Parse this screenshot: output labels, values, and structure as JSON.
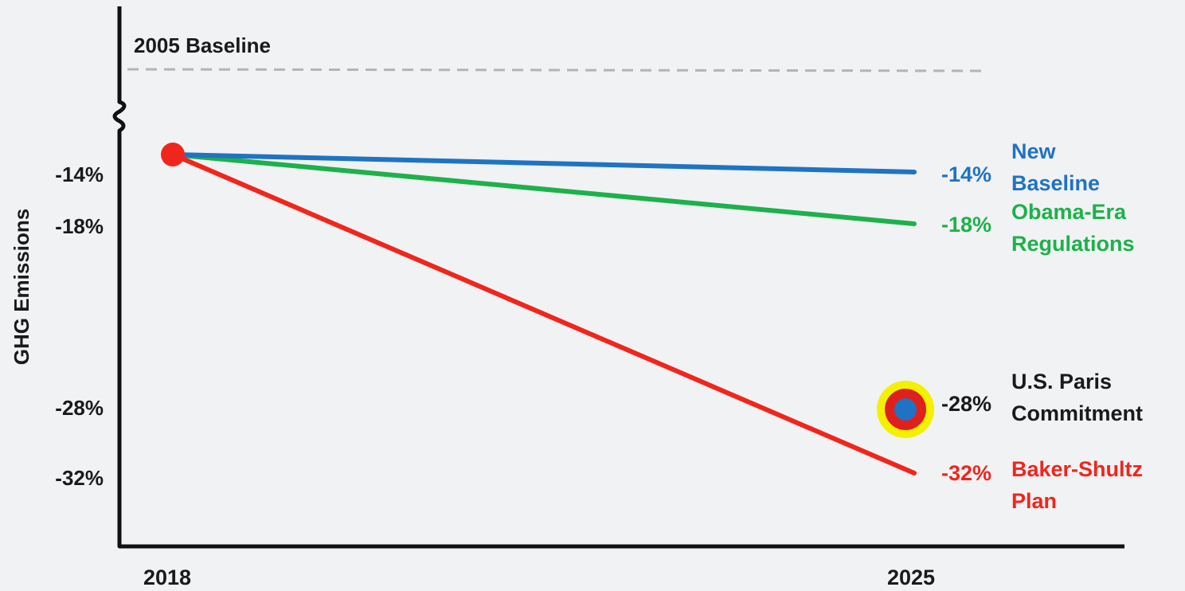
{
  "chart_data": {
    "type": "line",
    "x": [
      "2018",
      "2025"
    ],
    "xlabel": "",
    "ylabel": "GHG Emissions",
    "y_tick_labels": [
      "-14%",
      "-18%",
      "-28%",
      "-32%"
    ],
    "reference_line": {
      "label": "2005 Baseline",
      "value": 0
    },
    "series": [
      {
        "name": "New Baseline",
        "label_lines": [
          "New",
          "Baseline"
        ],
        "end_label": "-14%",
        "values": [
          -12.7,
          -14
        ],
        "color": "#1f73c4"
      },
      {
        "name": "Obama-Era Regulations",
        "label_lines": [
          "Obama-Era",
          "Regulations"
        ],
        "end_label": "-18%",
        "values": [
          -12.7,
          -18
        ],
        "color": "#1db14b"
      },
      {
        "name": "Baker-Shultz Plan",
        "label_lines": [
          "Baker-Shultz",
          "Plan"
        ],
        "end_label": "-32%",
        "values": [
          -12.7,
          -32
        ],
        "color": "#f0261c"
      }
    ],
    "target": {
      "name": "U.S. Paris Commitment",
      "label_lines": [
        "U.S. Paris",
        "Commitment"
      ],
      "end_label": "-28%",
      "x": "2025",
      "value": -28
    },
    "start_point": {
      "x": "2018",
      "value": -12.7
    }
  },
  "colors": {
    "axis": "#111111",
    "text": "#1a1a1a",
    "reference": "#b4b4b4",
    "start_point": "#f0261c",
    "target_outer": "#f5f000",
    "target_middle": "#e0201c",
    "target_inner": "#1f73c4"
  }
}
